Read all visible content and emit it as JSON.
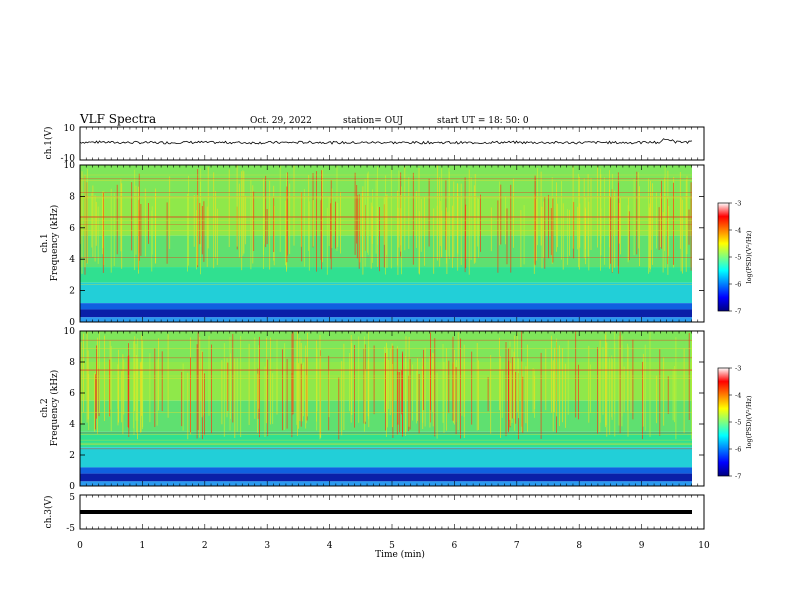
{
  "header": {
    "title": "VLF Spectra",
    "date": "Oct. 29, 2022",
    "station": "station= OUJ",
    "start": "start  UT  =   18: 50: 0"
  },
  "chart_data": [
    {
      "id": "ch1-waveform",
      "type": "line",
      "ylabel": "ch.1(V)",
      "ylim": [
        -10,
        10
      ],
      "y_ticks": [
        "10",
        "-10"
      ],
      "x": [
        0,
        0.5,
        1,
        1.5,
        2,
        2.5,
        3,
        3.5,
        4,
        4.5,
        5,
        5.5,
        6,
        6.5,
        7,
        7.5,
        8,
        8.5,
        9,
        9.3,
        9.5,
        9.8
      ],
      "values": [
        0.5,
        0.3,
        0.2,
        0.4,
        0.3,
        0.2,
        0.3,
        0.4,
        0.2,
        0.3,
        0.2,
        0.3,
        0.2,
        0.4,
        0.3,
        0.2,
        0.3,
        0.2,
        0.4,
        2.0,
        0.6,
        0.3
      ]
    },
    {
      "id": "ch1-spectrogram",
      "type": "heatmap",
      "ylabel_line1": "ch.1",
      "ylabel_line2": "Frequency (kHz)",
      "ylim": [
        0,
        10
      ],
      "y_ticks": [
        "0",
        "2",
        "4",
        "6",
        "8",
        "10"
      ],
      "xlim": [
        0,
        10
      ],
      "colorbar": {
        "label": "log(PSD)(V²/Hz)",
        "range": [
          -7,
          -3
        ],
        "ticks": [
          "-3",
          "-4",
          "-5",
          "-6",
          "-7"
        ]
      }
    },
    {
      "id": "ch2-spectrogram",
      "type": "heatmap",
      "ylabel_line1": "ch.2",
      "ylabel_line2": "Frequency (kHz)",
      "ylim": [
        0,
        10
      ],
      "y_ticks": [
        "0",
        "2",
        "4",
        "6",
        "8",
        "10"
      ],
      "xlim": [
        0,
        10
      ],
      "colorbar": {
        "label": "log(PSD)(V²/Hz)",
        "range": [
          -7,
          -3
        ],
        "ticks": [
          "-3",
          "-4",
          "-5",
          "-6",
          "-7"
        ]
      }
    },
    {
      "id": "ch3-waveform",
      "type": "line",
      "ylabel": "ch.3(V)",
      "ylim": [
        -5,
        5
      ],
      "y_ticks": [
        "5",
        "-5"
      ],
      "x": [
        0,
        9.8
      ],
      "values": [
        0,
        0
      ]
    }
  ],
  "x_axis": {
    "label": "Time (min)",
    "range": [
      0,
      10
    ],
    "ticks": [
      "0",
      "1",
      "2",
      "3",
      "4",
      "5",
      "6",
      "7",
      "8",
      "9",
      "10"
    ]
  }
}
